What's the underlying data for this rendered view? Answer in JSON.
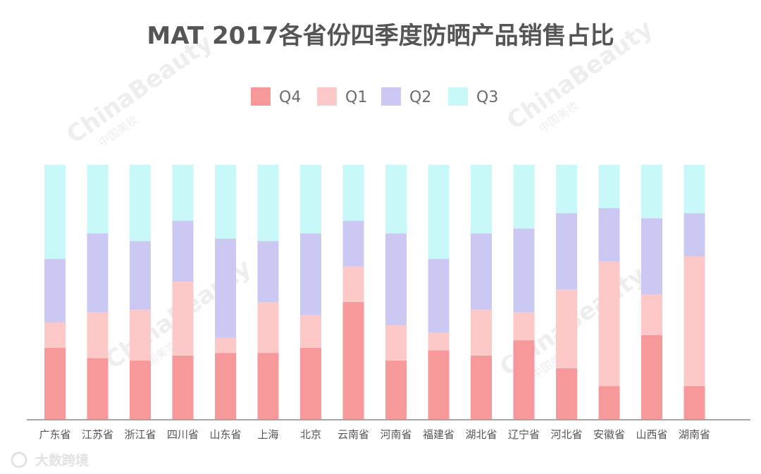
{
  "chart_data": {
    "type": "bar",
    "stacked": true,
    "percent": true,
    "title": "MAT 2017各省份四季度防晒产品销售占比",
    "legend_position": "top-center",
    "grid": false,
    "ylim": [
      0,
      100
    ],
    "categories": [
      "广东省",
      "江苏省",
      "浙江省",
      "四川省",
      "山东省",
      "上海",
      "北京",
      "云南省",
      "河南省",
      "福建省",
      "湖北省",
      "辽宁省",
      "河北省",
      "安徽省",
      "山西省",
      "湖南省"
    ],
    "series": [
      {
        "name": "Q4",
        "color": "#f7999a",
        "values": [
          28,
          24,
          23,
          25,
          26,
          26,
          28,
          46,
          23,
          27,
          25,
          31,
          20,
          13,
          33,
          13
        ]
      },
      {
        "name": "Q1",
        "color": "#fcc9c8",
        "values": [
          10,
          18,
          20,
          29,
          6,
          20,
          13,
          14,
          14,
          7,
          18,
          11,
          31,
          49,
          16,
          51
        ]
      },
      {
        "name": "Q2",
        "color": "#cbc9f3",
        "values": [
          25,
          31,
          27,
          24,
          39,
          24,
          32,
          18,
          36,
          29,
          30,
          33,
          30,
          21,
          30,
          17
        ]
      },
      {
        "name": "Q3",
        "color": "#c9f8f9",
        "values": [
          37,
          27,
          30,
          22,
          29,
          30,
          27,
          22,
          27,
          37,
          27,
          25,
          19,
          17,
          21,
          19
        ]
      }
    ]
  },
  "watermarks": {
    "brand_en": "ChinaBeauty",
    "brand_cn": "中国美妆",
    "footer": "大数跨境"
  }
}
